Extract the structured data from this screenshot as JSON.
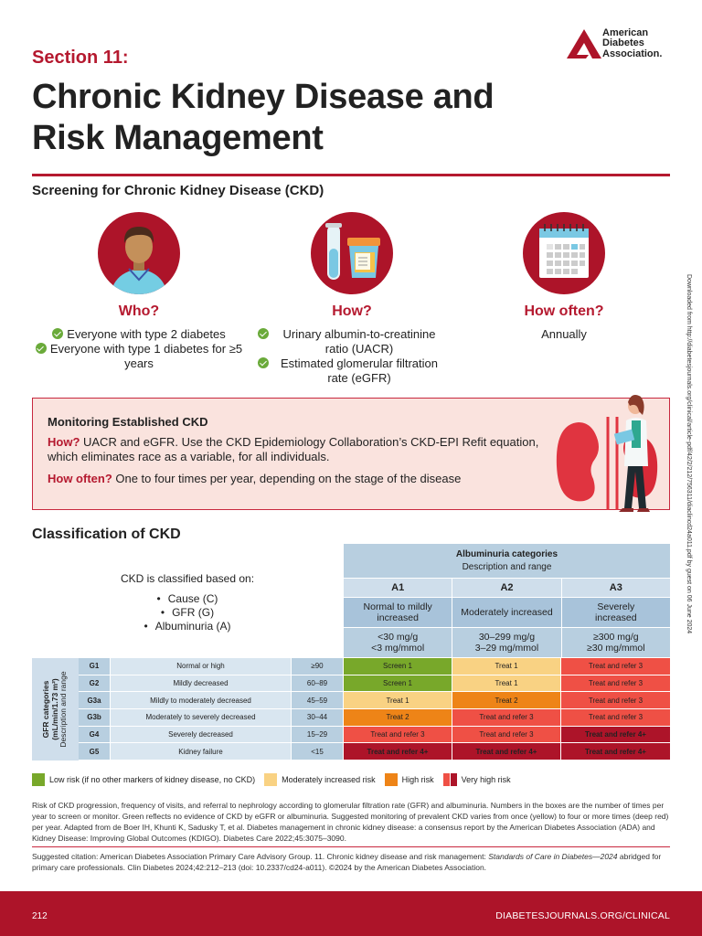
{
  "header": {
    "section_label": "Section 11:",
    "title_line1": "Chronic Kidney Disease and",
    "title_line2": "Risk Management",
    "logo": {
      "icon": "ada-triangle-logo-icon",
      "line1": "American",
      "line2": "Diabetes",
      "line3": "Association."
    }
  },
  "screening": {
    "heading": "Screening for Chronic Kidney Disease (CKD)",
    "columns": [
      {
        "icon": "person-avatar-icon",
        "title": "Who?",
        "items": [
          "Everyone with type 2 diabetes",
          "Everyone with type 1 diabetes for ≥5 years"
        ],
        "checked": true
      },
      {
        "icon": "test-tube-and-urine-cup-icon",
        "title": "How?",
        "items": [
          "Urinary albumin-to-creatinine ratio (UACR)",
          "Estimated glomerular filtration rate (eGFR)"
        ],
        "checked": true
      },
      {
        "icon": "calendar-icon",
        "title": "How often?",
        "items": [
          "Annually"
        ],
        "checked": false
      }
    ]
  },
  "monitoring": {
    "title": "Monitoring Established CKD",
    "how_lead": "How?",
    "how_text": " UACR and eGFR. Use the CKD Epidemiology Collaboration’s CKD-EPI Refit equation, which eliminates race as a variable, for all individuals.",
    "often_lead": "How often?",
    "often_text": " One to four times per year, depending on the stage of the disease",
    "illustration": "kidney-and-doctor-illustration-icon"
  },
  "classification": {
    "heading": "Classification of CKD",
    "intro": "CKD is classified based on:",
    "bases": [
      "Cause (C)",
      "GFR (G)",
      "Albuminuria (A)"
    ],
    "albuminuria": {
      "title": "Albuminuria categories",
      "subtitle": "Description and range",
      "columns": [
        {
          "code": "A1",
          "desc": "Normal to mildly increased",
          "range1": "<30 mg/g",
          "range2": "<3 mg/mmol"
        },
        {
          "code": "A2",
          "desc": "Moderately increased",
          "range1": "30–299 mg/g",
          "range2": "3–29 mg/mmol"
        },
        {
          "code": "A3",
          "desc": "Severely increased",
          "range1": "≥300 mg/g",
          "range2": "≥30 mg/mmol"
        }
      ]
    },
    "gfr": {
      "label_line1": "GFR categories",
      "label_line2": "(mL/min/1.73 m²)",
      "label_line3": "Description and range",
      "rows": [
        {
          "code": "G1",
          "desc": "Normal or high",
          "range": "≥90",
          "cells": [
            "Screen 1",
            "Treat 1",
            "Treat and refer 3"
          ],
          "levels": [
            "low",
            "mod",
            "vh"
          ]
        },
        {
          "code": "G2",
          "desc": "Mildly decreased",
          "range": "60–89",
          "cells": [
            "Screen 1",
            "Treat 1",
            "Treat and refer 3"
          ],
          "levels": [
            "low",
            "mod",
            "vh"
          ]
        },
        {
          "code": "G3a",
          "desc": "Mildly to moderately decreased",
          "range": "45–59",
          "cells": [
            "Treat 1",
            "Treat 2",
            "Treat and refer 3"
          ],
          "levels": [
            "mod",
            "high",
            "vh"
          ]
        },
        {
          "code": "G3b",
          "desc": "Moderately to severely decreased",
          "range": "30–44",
          "cells": [
            "Treat 2",
            "Treat and refer 3",
            "Treat and refer 3"
          ],
          "levels": [
            "high",
            "vh",
            "vh"
          ]
        },
        {
          "code": "G4",
          "desc": "Severely decreased",
          "range": "15–29",
          "cells": [
            "Treat and refer 3",
            "Treat and refer 3",
            "Treat and refer 4+"
          ],
          "levels": [
            "vh",
            "vh",
            "vvh"
          ]
        },
        {
          "code": "G5",
          "desc": "Kidney failure",
          "range": "<15",
          "cells": [
            "Treat and refer 4+",
            "Treat and refer 4+",
            "Treat and refer 4+"
          ],
          "levels": [
            "vvh",
            "vvh",
            "vvh"
          ]
        }
      ]
    },
    "legend": [
      {
        "label": "Low risk (if no other markers of kidney disease, no CKD)",
        "colors": [
          "#78a82a"
        ]
      },
      {
        "label": "Moderately increased risk",
        "colors": [
          "#f9d283"
        ]
      },
      {
        "label": "High risk",
        "colors": [
          "#ee8417"
        ]
      },
      {
        "label": "Very high risk",
        "colors": [
          "#ef5045",
          "#ad1429"
        ]
      }
    ]
  },
  "footnote": "Risk of CKD progression, frequency of visits, and referral to nephrology according to glomerular filtration rate (GFR) and albuminuria. Numbers in the boxes are the number of times per year to screen or monitor. Green reflects no evidence of CKD by eGFR or albuminuria. Suggested monitoring of prevalent CKD varies from once (yellow) to four or more times (deep red) per year. Adapted from de Boer IH, Khunti K, Sadusky T, et al. Diabetes management in chronic kidney disease: a consensus report by the American Diabetes Association (ADA) and Kidney Disease: Improving Global Outcomes (KDIGO). Diabetes Care 2022;45:3075–3090.",
  "citation": {
    "before": "Suggested citation: American Diabetes Association Primary Care Advisory Group. 11. Chronic kidney disease and risk management: ",
    "italic": "Standards of Care in Diabetes—2024",
    "after": " abridged for primary care professionals. Clin Diabetes 2024;42:212–213 (doi: 10.2337/cd24-a011). ©2024 by the American Diabetes Association."
  },
  "footer": {
    "page_number": "212",
    "url": "DIABETESJOURNALS.ORG/CLINICAL"
  },
  "side_note": "Downloaded from http://diabetesjournals.org/clinical/article-pdf/42/2/212/756311/diaclincd24a011.pdf by guest on 06 June 2024",
  "colors": {
    "brand_red": "#ad1429",
    "heading_red": "#b5192f",
    "monitor_bg": "#fae3de",
    "table_blue": "#b8cfe0",
    "low": "#78a82a",
    "moderate": "#f9d283",
    "high": "#ee8417",
    "very_high": "#ef5045",
    "very_very_high": "#ad1429"
  }
}
